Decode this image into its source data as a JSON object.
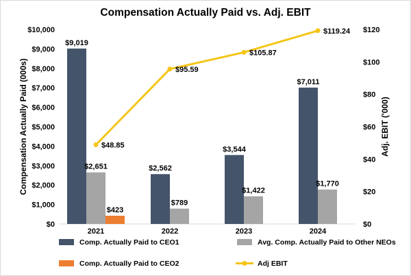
{
  "chart_data": {
    "type": "bar",
    "title": "Compensation Actually Paid vs. Adj. EBIT",
    "ylabel": "Compensation Actually Paid (000s)",
    "y2label": "Adj. EBIT ('000)",
    "categories": [
      "2021",
      "2022",
      "2023",
      "2024"
    ],
    "ylim": [
      0,
      10000
    ],
    "yticks": [
      0,
      1000,
      2000,
      3000,
      4000,
      5000,
      6000,
      7000,
      8000,
      9000,
      10000
    ],
    "ytick_labels": [
      "$0",
      "$1,000",
      "$2,000",
      "$3,000",
      "$4,000",
      "$5,000",
      "$6,000",
      "$7,000",
      "$8,000",
      "$9,000",
      "$10,000"
    ],
    "y2lim": [
      0,
      120
    ],
    "y2ticks": [
      0,
      20,
      40,
      60,
      80,
      100,
      120
    ],
    "y2tick_labels": [
      "$0",
      "$20",
      "$40",
      "$60",
      "$80",
      "$100",
      "$120"
    ],
    "series": [
      {
        "name": "Comp. Actually Paid to CEO1",
        "color": "#44546a",
        "values": [
          9019,
          2562,
          3544,
          7011
        ],
        "labels": [
          "$9,019",
          "$2,562",
          "$3,544",
          "$7,011"
        ]
      },
      {
        "name": "Avg. Comp. Actually Paid to Other NEOs",
        "color": "#a5a5a5",
        "values": [
          2651,
          789,
          1422,
          1770
        ],
        "labels": [
          "$2,651",
          "$789",
          "$1,422",
          "$1,770"
        ]
      },
      {
        "name": "Comp. Actually Paid to CEO2",
        "color": "#ed7d31",
        "values": [
          423,
          null,
          null,
          null
        ],
        "labels": [
          "$423",
          null,
          null,
          null
        ]
      }
    ],
    "line_series": {
      "name": "Adj EBIT",
      "color": "#f5c518",
      "axis": "right",
      "values": [
        48.85,
        95.59,
        105.87,
        119.24
      ],
      "labels": [
        "$48.85",
        "$95.59",
        "$105.87",
        "$119.24"
      ]
    },
    "legend": [
      {
        "name": "Comp. Actually Paid to CEO1",
        "kind": "box",
        "color": "#44546a"
      },
      {
        "name": "Avg. Comp. Actually Paid to Other NEOs",
        "kind": "box",
        "color": "#a5a5a5"
      },
      {
        "name": "Comp. Actually Paid to CEO2",
        "kind": "box",
        "color": "#ed7d31"
      },
      {
        "name": "Adj EBIT",
        "kind": "line",
        "color": "#f5c518"
      }
    ]
  }
}
